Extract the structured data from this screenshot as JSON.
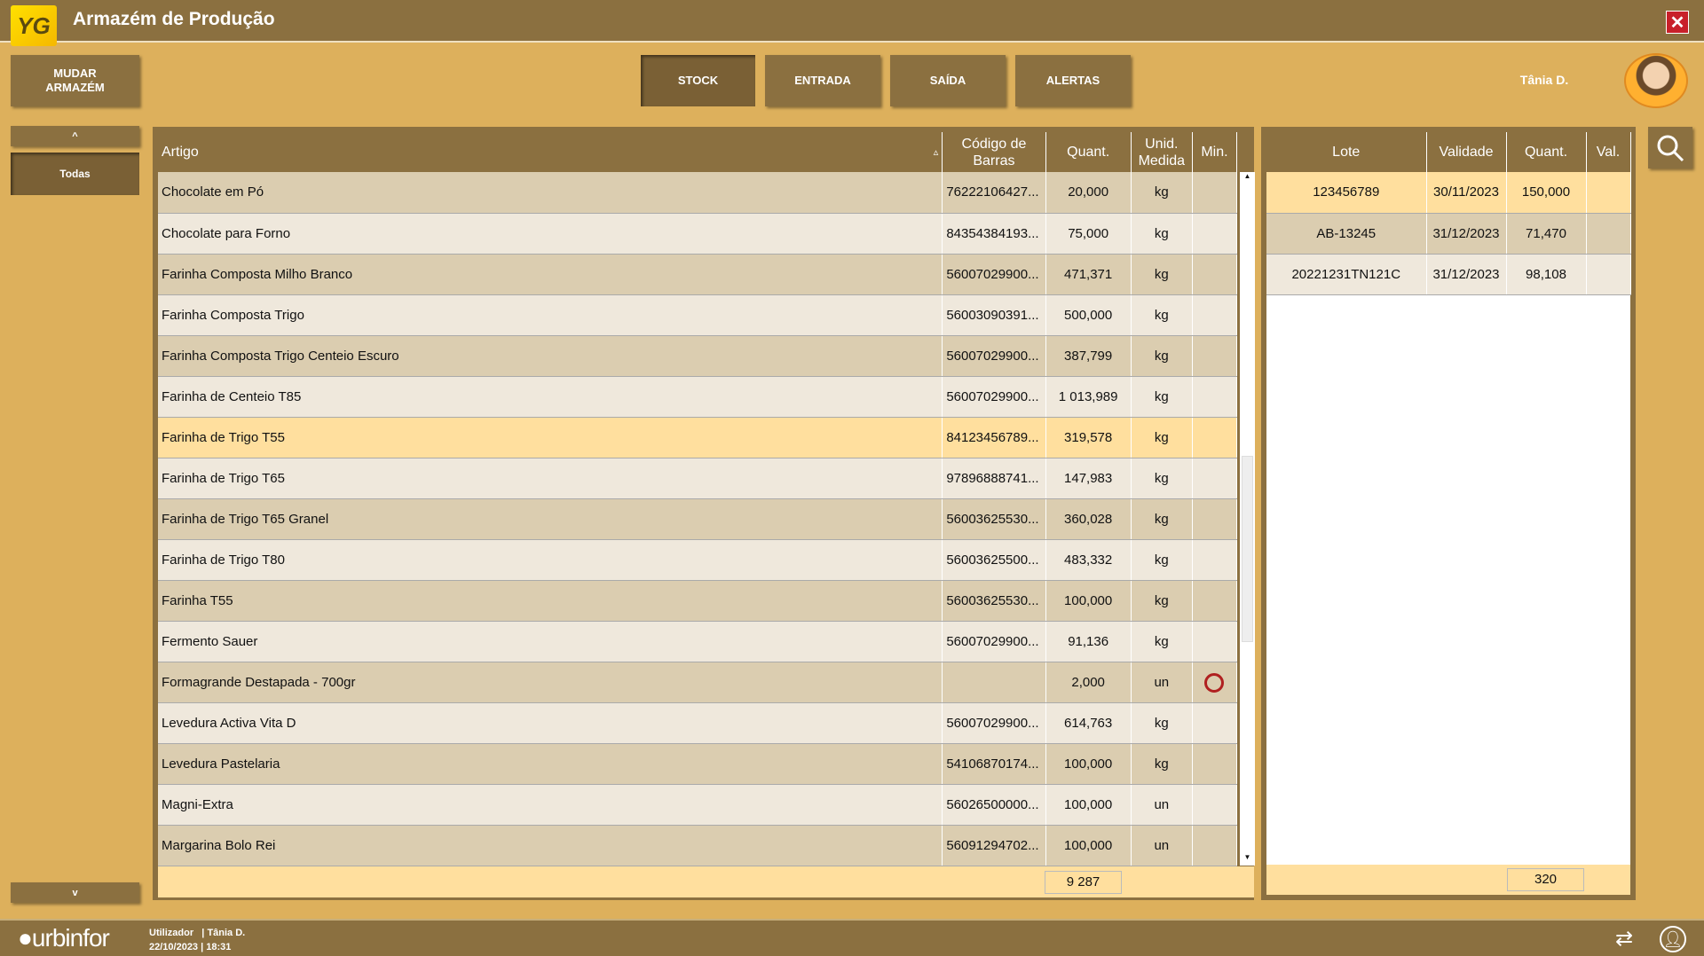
{
  "app": {
    "title": "Armazém de Produção",
    "logo_text": "YG"
  },
  "toolbar": {
    "change_warehouse": "MUDAR ARMAZÉM",
    "tabs": [
      {
        "label": "STOCK",
        "active": true
      },
      {
        "label": "ENTRADA"
      },
      {
        "label": "SAÍDA"
      },
      {
        "label": "ALERTAS"
      }
    ],
    "user": "Tânia D."
  },
  "sidebar": {
    "up": "^",
    "category": "Todas",
    "down": "v"
  },
  "stock_table": {
    "headers": {
      "artigo": "Artigo",
      "codigo": "Código de Barras",
      "quant": "Quant.",
      "unid": "Unid. Medida",
      "min": "Min."
    },
    "sort_indicator": "▵",
    "rows": [
      {
        "artigo": "Chocolate em Pó",
        "codigo": "76222106427...",
        "quant": "20,000",
        "unid": "kg"
      },
      {
        "artigo": "Chocolate para Forno",
        "codigo": "84354384193...",
        "quant": "75,000",
        "unid": "kg"
      },
      {
        "artigo": "Farinha Composta Milho Branco",
        "codigo": "56007029900...",
        "quant": "471,371",
        "unid": "kg"
      },
      {
        "artigo": "Farinha Composta Trigo",
        "codigo": "56003090391...",
        "quant": "500,000",
        "unid": "kg"
      },
      {
        "artigo": "Farinha Composta Trigo Centeio Escuro",
        "codigo": "56007029900...",
        "quant": "387,799",
        "unid": "kg"
      },
      {
        "artigo": "Farinha de Centeio T85",
        "codigo": "56007029900...",
        "quant": "1 013,989",
        "unid": "kg"
      },
      {
        "artigo": "Farinha de Trigo T55",
        "codigo": "84123456789...",
        "quant": "319,578",
        "unid": "kg",
        "selected": true
      },
      {
        "artigo": "Farinha de Trigo T65",
        "codigo": "97896888741...",
        "quant": "147,983",
        "unid": "kg"
      },
      {
        "artigo": "Farinha de Trigo T65 Granel",
        "codigo": "56003625530...",
        "quant": "360,028",
        "unid": "kg"
      },
      {
        "artigo": "Farinha de Trigo T80",
        "codigo": "56003625500...",
        "quant": "483,332",
        "unid": "kg"
      },
      {
        "artigo": "Farinha T55",
        "codigo": "56003625530...",
        "quant": "100,000",
        "unid": "kg"
      },
      {
        "artigo": "Fermento Sauer",
        "codigo": "56007029900...",
        "quant": "91,136",
        "unid": "kg"
      },
      {
        "artigo": "Formagrande Destapada - 700gr",
        "codigo": "",
        "quant": "2,000",
        "unid": "un",
        "min_icon": "stopwatch-icon"
      },
      {
        "artigo": "Levedura Activa Vita D",
        "codigo": "56007029900...",
        "quant": "614,763",
        "unid": "kg"
      },
      {
        "artigo": "Levedura Pastelaria",
        "codigo": "54106870174...",
        "quant": "100,000",
        "unid": "kg"
      },
      {
        "artigo": "Magni-Extra",
        "codigo": "56026500000...",
        "quant": "100,000",
        "unid": "un"
      },
      {
        "artigo": "Margarina Bolo Rei",
        "codigo": "56091294702...",
        "quant": "100,000",
        "unid": "un"
      }
    ],
    "total": "9 287"
  },
  "lot_table": {
    "headers": {
      "lote": "Lote",
      "validade": "Validade",
      "quant": "Quant.",
      "val": "Val."
    },
    "rows": [
      {
        "lote": "123456789",
        "validade": "30/11/2023",
        "quant": "150,000",
        "selected": true
      },
      {
        "lote": "AB-13245",
        "validade": "31/12/2023",
        "quant": "71,470"
      },
      {
        "lote": "20221231TN121C",
        "validade": "31/12/2023",
        "quant": "98,108"
      }
    ],
    "total": "320"
  },
  "status": {
    "brand": "urbinfor",
    "user_label": "Utilizador",
    "user": "Tânia D.",
    "date": "22/10/2023",
    "time": "18:31"
  },
  "colors": {
    "brand": "#8B7040",
    "background": "#DDB05C",
    "selected": "#FFDF9E",
    "alert": "#B02020"
  }
}
